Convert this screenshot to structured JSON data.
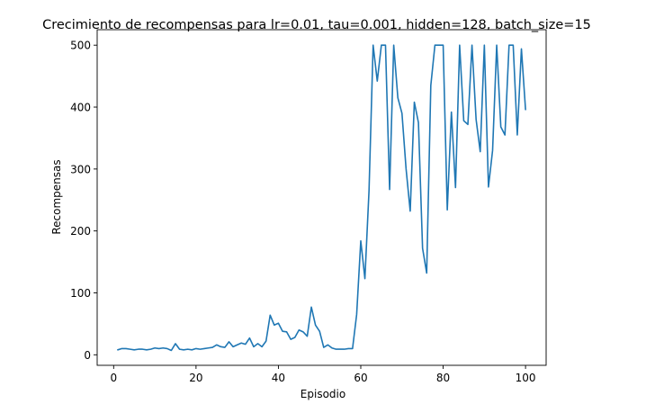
{
  "chart_data": {
    "type": "line",
    "title": "Crecimiento de recompensas para lr=0.01, tau=0.001, hidden=128, batch_size=15",
    "xlabel": "Episodio",
    "ylabel": "Recompensas",
    "xlim": [
      -4,
      105
    ],
    "ylim": [
      -17,
      525
    ],
    "xticks": [
      0,
      20,
      40,
      60,
      80,
      100
    ],
    "yticks": [
      0,
      100,
      200,
      300,
      400,
      500
    ],
    "grid": false,
    "line_color": "#1f77b4",
    "series": [
      {
        "x": [
          1,
          2,
          3,
          4,
          5,
          6,
          7,
          8,
          9,
          10,
          11,
          12,
          13,
          14,
          15,
          16,
          17,
          18,
          19,
          20,
          21,
          22,
          23,
          24,
          25,
          26,
          27,
          28,
          29,
          30,
          31,
          32,
          33,
          34,
          35,
          36,
          37,
          38,
          39,
          40,
          41,
          42,
          43,
          44,
          45,
          46,
          47,
          48,
          49,
          50,
          51,
          52,
          53,
          54,
          55,
          56,
          57,
          58,
          59,
          60,
          61,
          62,
          63,
          64,
          65,
          66,
          67,
          68,
          69,
          70,
          71,
          72,
          73,
          74,
          75,
          76,
          77,
          78,
          79,
          80,
          81,
          82,
          83,
          84,
          85,
          86,
          87,
          88,
          89,
          90,
          91,
          92,
          93,
          94,
          95,
          96,
          97,
          98,
          99,
          100
        ],
        "values": [
          8,
          10,
          10,
          9,
          8,
          9,
          9,
          8,
          9,
          11,
          10,
          11,
          10,
          7,
          18,
          9,
          8,
          9,
          8,
          10,
          9,
          10,
          11,
          12,
          16,
          13,
          12,
          21,
          13,
          16,
          19,
          17,
          27,
          13,
          18,
          13,
          22,
          64,
          48,
          51,
          38,
          37,
          25,
          28,
          40,
          37,
          30,
          77,
          48,
          38,
          12,
          16,
          11,
          9,
          9,
          9,
          10,
          10,
          65,
          184,
          123,
          265,
          500,
          442,
          500,
          500,
          267,
          500,
          415,
          390,
          300,
          232,
          408,
          375,
          172,
          132,
          435,
          500,
          500,
          500,
          234,
          392,
          270,
          500,
          378,
          372,
          500,
          380,
          328,
          500,
          271,
          330,
          500,
          368,
          355,
          500,
          500,
          355,
          494,
          396
        ]
      }
    ]
  }
}
